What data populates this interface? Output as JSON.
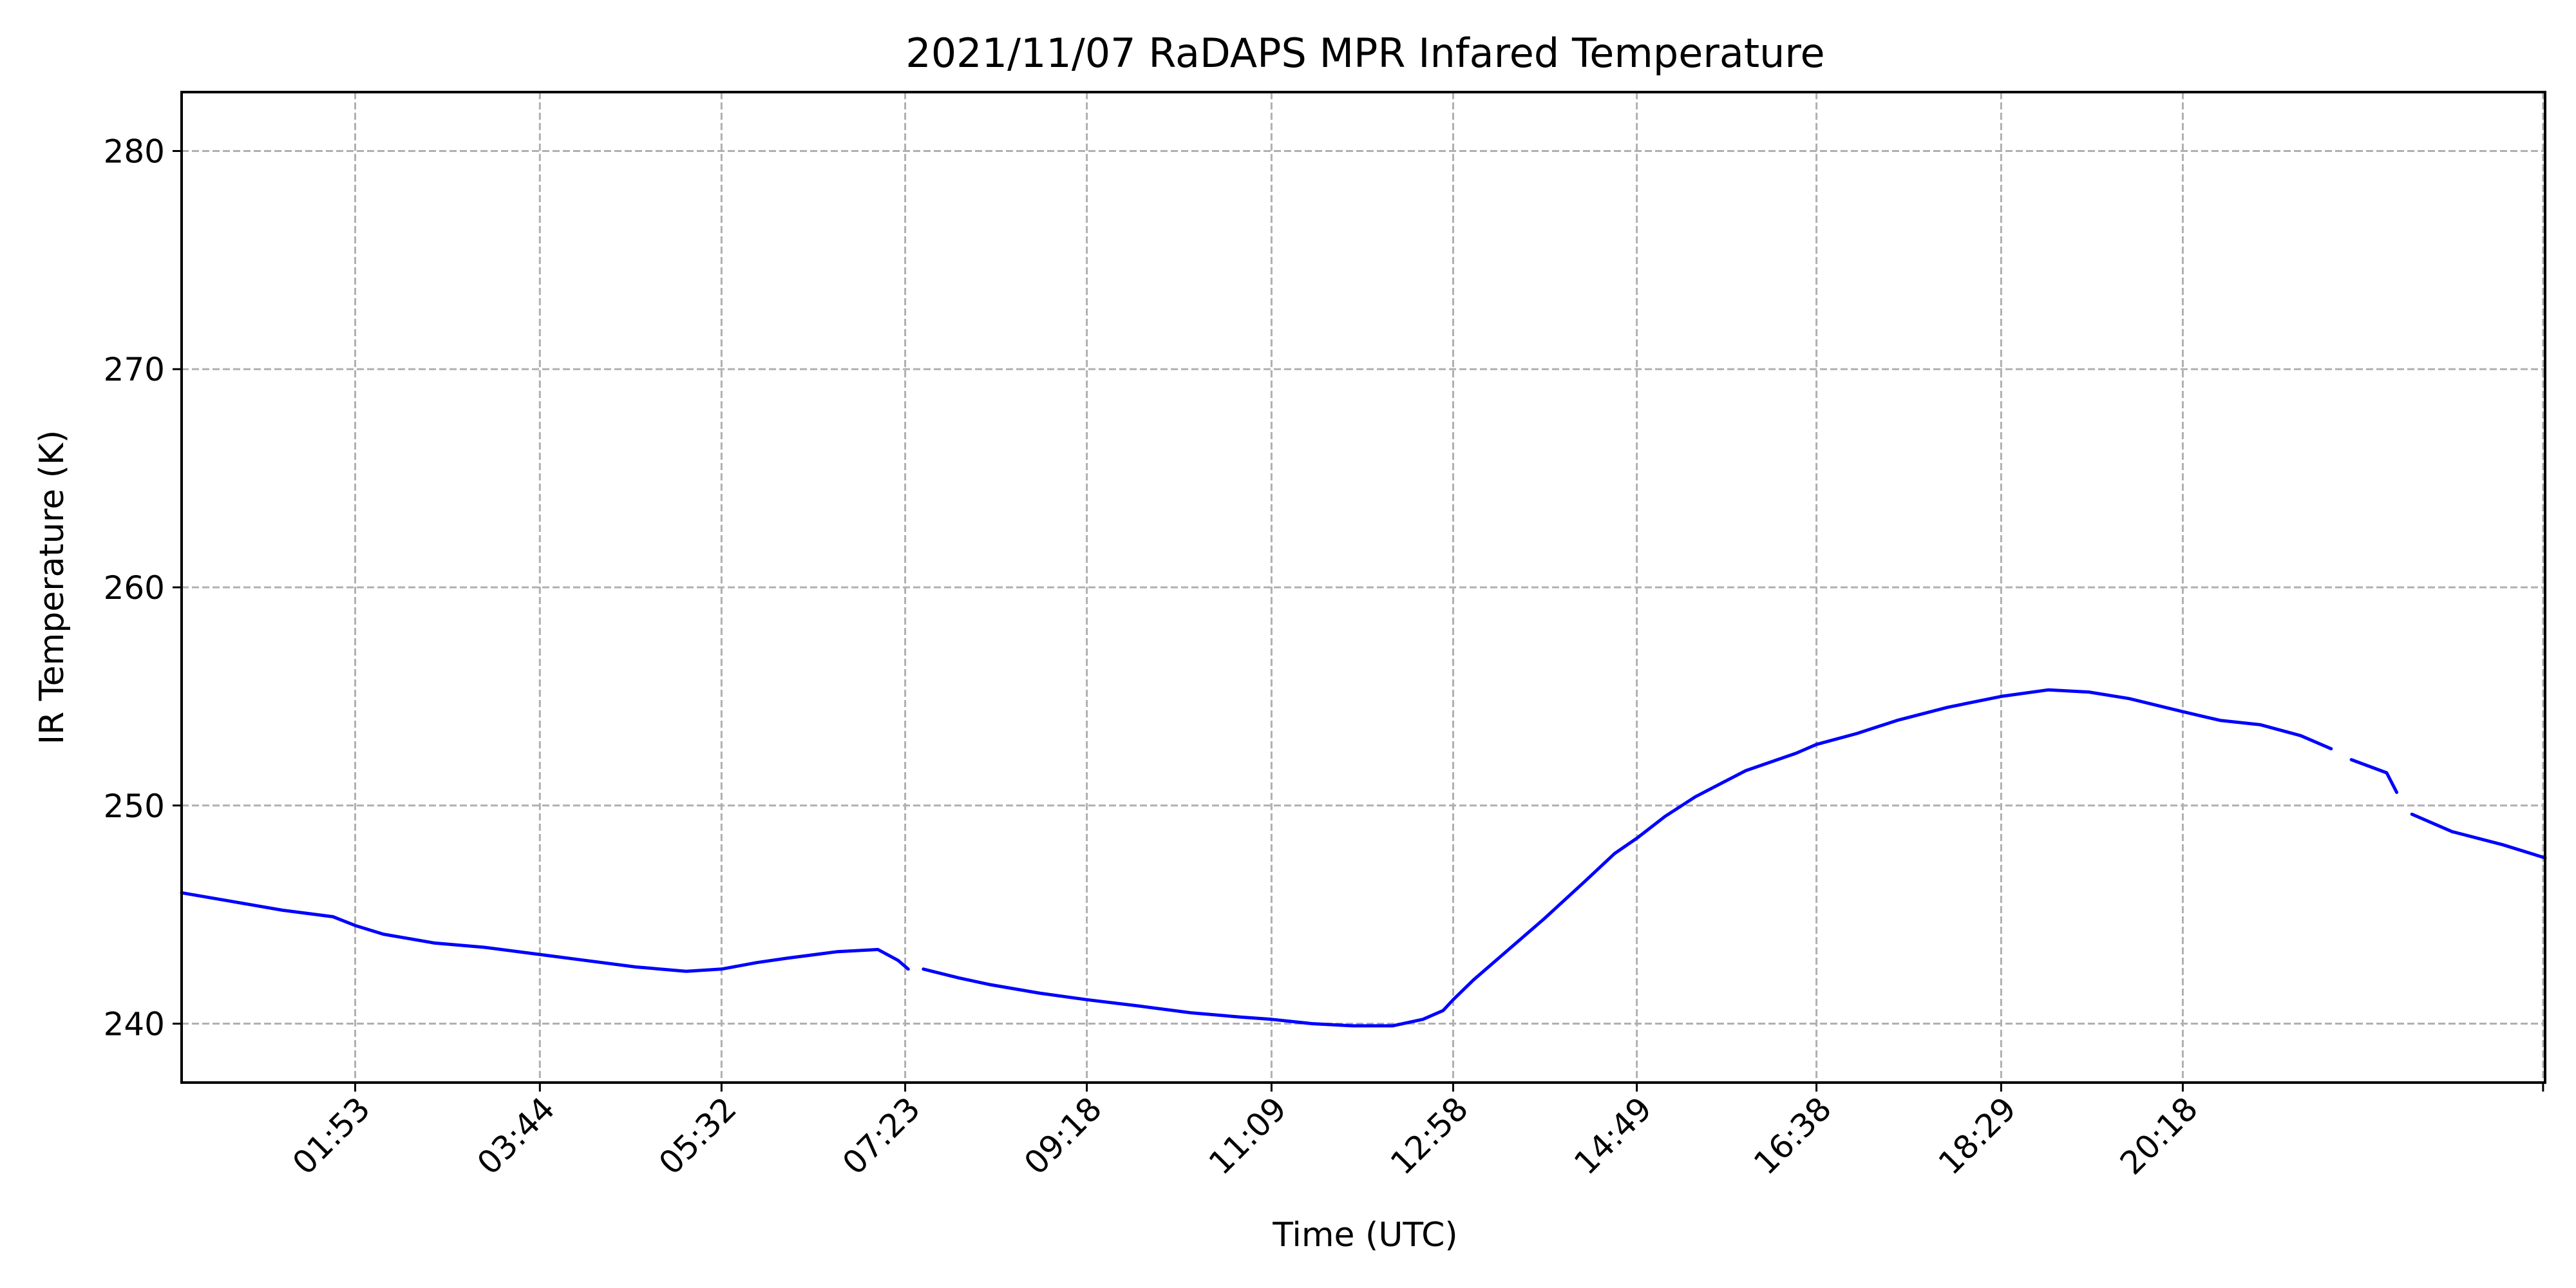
{
  "chart_data": {
    "type": "line",
    "title": "2021/11/07 RaDAPS MPR Infared Temperature",
    "xlabel": "Time (UTC)",
    "ylabel": "IR Temperature (K)",
    "x_unit": "hours UTC",
    "xlim": [
      0.0,
      23.42
    ],
    "ylim": [
      237.3,
      282.7
    ],
    "grid": true,
    "x_ticks": [
      {
        "x": 1.72,
        "label": "01:53"
      },
      {
        "x": 3.55,
        "label": "03:44"
      },
      {
        "x": 5.35,
        "label": "05:32"
      },
      {
        "x": 7.17,
        "label": "07:23"
      },
      {
        "x": 8.97,
        "label": "09:18"
      },
      {
        "x": 10.8,
        "label": "11:09"
      },
      {
        "x": 12.6,
        "label": "12:58"
      },
      {
        "x": 14.42,
        "label": "14:49"
      },
      {
        "x": 16.2,
        "label": "16:38"
      },
      {
        "x": 18.03,
        "label": "18:29"
      },
      {
        "x": 19.83,
        "label": "20:18"
      },
      {
        "x": 23.4,
        "label": ""
      }
    ],
    "y_ticks": [
      240,
      250,
      260,
      270,
      280
    ],
    "series": [
      {
        "color": "#0000ff",
        "segments": [
          [
            [
              0.0,
              246.0
            ],
            [
              0.5,
              245.6
            ],
            [
              1.0,
              245.2
            ],
            [
              1.5,
              244.9
            ],
            [
              1.72,
              244.5
            ],
            [
              2.0,
              244.1
            ],
            [
              2.5,
              243.7
            ],
            [
              3.0,
              243.5
            ],
            [
              3.5,
              243.2
            ],
            [
              4.0,
              242.9
            ],
            [
              4.5,
              242.6
            ],
            [
              5.0,
              242.4
            ],
            [
              5.35,
              242.5
            ],
            [
              5.7,
              242.8
            ],
            [
              6.0,
              243.0
            ],
            [
              6.5,
              243.3
            ],
            [
              6.9,
              243.4
            ],
            [
              7.1,
              242.9
            ],
            [
              7.2,
              242.5
            ]
          ],
          [
            [
              7.35,
              242.5
            ],
            [
              7.7,
              242.1
            ],
            [
              8.0,
              241.8
            ],
            [
              8.5,
              241.4
            ],
            [
              8.97,
              241.1
            ],
            [
              9.5,
              240.8
            ],
            [
              10.0,
              240.5
            ],
            [
              10.5,
              240.3
            ],
            [
              10.8,
              240.2
            ],
            [
              11.2,
              240.0
            ],
            [
              11.6,
              239.9
            ],
            [
              12.0,
              239.9
            ],
            [
              12.3,
              240.2
            ],
            [
              12.5,
              240.6
            ],
            [
              12.6,
              241.1
            ],
            [
              12.8,
              242.0
            ],
            [
              13.1,
              243.2
            ],
            [
              13.5,
              244.8
            ],
            [
              13.9,
              246.5
            ],
            [
              14.2,
              247.8
            ],
            [
              14.42,
              248.5
            ],
            [
              14.7,
              249.5
            ],
            [
              15.0,
              250.4
            ],
            [
              15.5,
              251.6
            ],
            [
              16.0,
              252.4
            ],
            [
              16.2,
              252.8
            ],
            [
              16.6,
              253.3
            ],
            [
              17.0,
              253.9
            ],
            [
              17.5,
              254.5
            ],
            [
              18.03,
              255.0
            ],
            [
              18.5,
              255.3
            ],
            [
              18.9,
              255.2
            ],
            [
              19.3,
              254.9
            ],
            [
              19.83,
              254.3
            ],
            [
              20.2,
              253.9
            ],
            [
              20.6,
              253.7
            ],
            [
              21.0,
              253.2
            ],
            [
              21.3,
              252.6
            ]
          ],
          [
            [
              21.5,
              252.1
            ],
            [
              21.85,
              251.5
            ],
            [
              21.95,
              250.6
            ]
          ],
          [
            [
              22.1,
              249.6
            ],
            [
              22.5,
              248.8
            ],
            [
              23.0,
              248.2
            ],
            [
              23.42,
              247.6
            ]
          ]
        ]
      }
    ]
  }
}
